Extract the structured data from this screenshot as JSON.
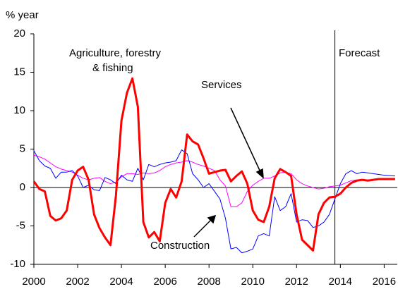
{
  "chart_data": {
    "type": "line",
    "y_unit_label": "% year",
    "annotations": {
      "agriculture": [
        "Agriculture, forestry",
        "& fishing"
      ],
      "services": "Services",
      "construction": "Construction",
      "forecast": "Forecast"
    },
    "forecast_start": 2013.75,
    "x": [
      2000,
      2000.25,
      2000.5,
      2000.75,
      2001,
      2001.25,
      2001.5,
      2001.75,
      2002,
      2002.25,
      2002.5,
      2002.75,
      2003,
      2003.25,
      2003.5,
      2003.75,
      2004,
      2004.25,
      2004.5,
      2004.75,
      2005,
      2005.25,
      2005.5,
      2005.75,
      2006,
      2006.25,
      2006.5,
      2006.75,
      2007,
      2007.25,
      2007.5,
      2007.75,
      2008,
      2008.25,
      2008.5,
      2008.75,
      2009,
      2009.25,
      2009.5,
      2009.75,
      2010,
      2010.25,
      2010.5,
      2010.75,
      2011,
      2011.25,
      2011.5,
      2011.75,
      2012,
      2012.25,
      2012.5,
      2012.75,
      2013,
      2013.25,
      2013.5,
      2013.75,
      2014,
      2014.25,
      2014.5,
      2014.75,
      2015,
      2015.25,
      2015.5,
      2015.75,
      2016,
      2016.25,
      2016.5
    ],
    "series": [
      {
        "name": "Services",
        "color": "#ff00ff",
        "width": 1,
        "values": [
          4.2,
          4.0,
          3.7,
          3.2,
          2.7,
          2.4,
          2.2,
          2.0,
          1.6,
          1.2,
          1.0,
          1.2,
          1.3,
          0.8,
          0.5,
          0.7,
          1.4,
          1.8,
          1.8,
          1.7,
          1.9,
          1.8,
          1.9,
          2.2,
          2.7,
          3.0,
          3.2,
          3.3,
          3.5,
          3.3,
          3.0,
          2.8,
          2.5,
          2.2,
          1.0,
          0.2,
          -2.5,
          -2.5,
          -2.0,
          -0.5,
          0.3,
          0.8,
          1.2,
          1.2,
          1.5,
          1.9,
          2.0,
          1.8,
          1.0,
          0.5,
          0.2,
          0.0,
          -0.2,
          -0.1,
          0.1,
          0.2,
          0.3,
          0.6,
          0.9,
          1.0,
          1.0,
          1.0,
          1.0,
          1.1,
          1.1,
          1.1,
          1.1
        ]
      },
      {
        "name": "Construction",
        "color": "#0000ff",
        "width": 1,
        "values": [
          4.8,
          3.5,
          2.8,
          2.5,
          1.2,
          2.0,
          2.0,
          2.2,
          1.5,
          0.0,
          0.3,
          -0.3,
          -0.4,
          1.3,
          1.0,
          0.5,
          1.6,
          1.0,
          0.8,
          2.5,
          1.0,
          3.0,
          2.7,
          3.0,
          3.2,
          3.3,
          3.5,
          4.9,
          4.4,
          1.8,
          1.0,
          0.0,
          0.5,
          -0.5,
          -1.5,
          -4.0,
          -8.0,
          -7.8,
          -8.5,
          -8.3,
          -8.0,
          -6.3,
          -6.0,
          -6.3,
          -1.2,
          -3.0,
          -2.5,
          -0.8,
          -4.5,
          -4.2,
          -4.3,
          -5.2,
          -5.0,
          -4.5,
          -3.5,
          -1.5,
          0.5,
          1.8,
          2.2,
          1.8,
          2.0,
          1.9,
          1.8,
          1.7,
          1.6,
          1.55,
          1.5
        ]
      },
      {
        "name": "Agriculture, forestry & fishing",
        "color": "#ff0000",
        "width": 3,
        "values": [
          0.8,
          -0.2,
          -0.5,
          -3.7,
          -4.3,
          -4.0,
          -3.0,
          1.0,
          2.2,
          2.7,
          1.0,
          -3.5,
          -5.3,
          -6.5,
          -7.5,
          -1.0,
          8.7,
          12.3,
          14.2,
          10.5,
          -4.5,
          -6.5,
          -5.8,
          -7.0,
          -2.0,
          -0.2,
          -1.3,
          0.8,
          6.9,
          6.0,
          5.6,
          3.8,
          1.8,
          2.0,
          2.2,
          2.3,
          0.8,
          1.5,
          2.1,
          0.5,
          -3.0,
          -4.2,
          -4.5,
          -2.5,
          1.2,
          2.4,
          2.0,
          1.5,
          -3.5,
          -6.8,
          -7.5,
          -8.2,
          -3.5,
          -2.0,
          -1.3,
          -1.2,
          -0.8,
          0.0,
          0.6,
          0.9,
          1.0,
          0.9,
          1.0,
          1.1,
          1.1,
          1.1,
          1.1
        ]
      }
    ],
    "xlim": [
      2000,
      2016.6
    ],
    "xticks": [
      2000,
      2002,
      2004,
      2006,
      2008,
      2010,
      2012,
      2014,
      2016
    ],
    "ylim": [
      -10,
      20
    ],
    "yticks": [
      -10,
      -5,
      0,
      5,
      10,
      15,
      20
    ]
  }
}
